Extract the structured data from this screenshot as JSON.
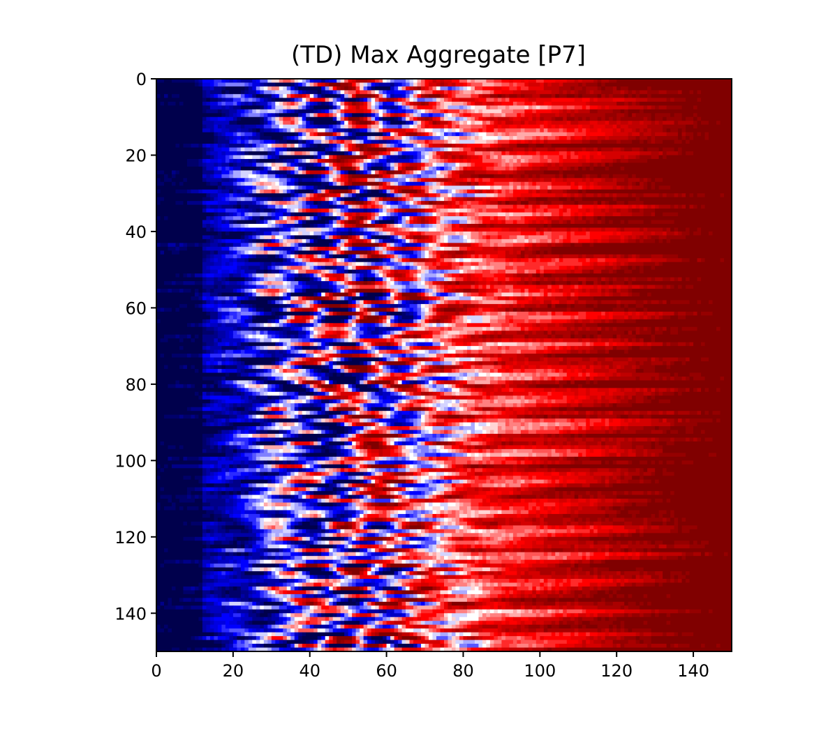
{
  "chart_data": {
    "type": "heatmap",
    "title": "(TD) Max Aggregate [P7]",
    "xlabel": "",
    "ylabel": "",
    "xlim": [
      0,
      150
    ],
    "ylim": [
      150,
      0
    ],
    "grid_size": [
      150,
      150
    ],
    "x_ticks": [
      "0",
      "20",
      "40",
      "60",
      "80",
      "100",
      "120",
      "140"
    ],
    "y_ticks": [
      "0",
      "20",
      "40",
      "60",
      "80",
      "100",
      "120",
      "140"
    ],
    "colormap": "seismic",
    "colormap_stops": [
      "#00004c",
      "#0000ff",
      "#ffffff",
      "#ff0000",
      "#800000"
    ],
    "value_range": [
      -1,
      1
    ],
    "row_profile": "values rise from about -1 at column 0 to about +1 at column 150, crossing 0 near column 55; rows show horizontal streaks with interleaved red and blue blobs between columns 25 and 75"
  }
}
